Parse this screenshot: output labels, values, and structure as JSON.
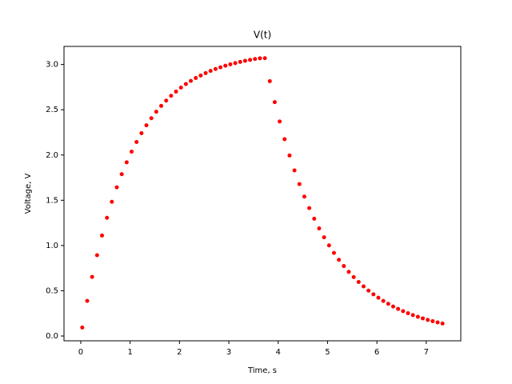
{
  "chart_data": {
    "type": "scatter",
    "title": "V(t)",
    "x_label": "Time, s",
    "y_label": "Voltage, V",
    "color": "#ff0000",
    "x": [
      0.03,
      0.13,
      0.23,
      0.33,
      0.43,
      0.53,
      0.63,
      0.73,
      0.83,
      0.93,
      1.03,
      1.13,
      1.23,
      1.33,
      1.43,
      1.53,
      1.63,
      1.73,
      1.83,
      1.93,
      2.03,
      2.13,
      2.23,
      2.33,
      2.43,
      2.53,
      2.63,
      2.73,
      2.83,
      2.93,
      3.03,
      3.13,
      3.23,
      3.33,
      3.43,
      3.53,
      3.63,
      3.73,
      3.83,
      3.93,
      4.03,
      4.13,
      4.23,
      4.33,
      4.43,
      4.53,
      4.63,
      4.73,
      4.83,
      4.93,
      5.03,
      5.13,
      5.23,
      5.33,
      5.43,
      5.53,
      5.63,
      5.73,
      5.83,
      5.93,
      6.03,
      6.13,
      6.23,
      6.33,
      6.43,
      6.53,
      6.63,
      6.73,
      6.83,
      6.93,
      7.03,
      7.13,
      7.23,
      7.33
    ],
    "values": [
      0.094,
      0.388,
      0.653,
      0.893,
      1.11,
      1.306,
      1.483,
      1.643,
      1.788,
      1.919,
      2.037,
      2.144,
      2.241,
      2.328,
      2.407,
      2.478,
      2.543,
      2.601,
      2.654,
      2.701,
      2.745,
      2.784,
      2.819,
      2.851,
      2.879,
      2.905,
      2.929,
      2.95,
      2.969,
      2.987,
      3.002,
      3.016,
      3.029,
      3.041,
      3.051,
      3.061,
      3.069,
      3.07,
      2.816,
      2.584,
      2.37,
      2.175,
      1.995,
      1.83,
      1.679,
      1.54,
      1.413,
      1.296,
      1.189,
      1.091,
      1.001,
      0.918,
      0.842,
      0.773,
      0.709,
      0.651,
      0.597,
      0.548,
      0.502,
      0.461,
      0.423,
      0.388,
      0.356,
      0.326,
      0.299,
      0.275,
      0.252,
      0.231,
      0.212,
      0.195,
      0.178,
      0.164,
      0.15,
      0.138
    ],
    "xlim": [
      -0.34,
      7.7
    ],
    "ylim": [
      -0.053,
      3.2
    ],
    "xticks": [
      0,
      1,
      2,
      3,
      4,
      5,
      6,
      7
    ],
    "yticks": [
      {
        "value": 0,
        "label": "0.0"
      },
      {
        "value": 0.5,
        "label": "0.5"
      },
      {
        "value": 1,
        "label": "1.0"
      },
      {
        "value": 1.5,
        "label": "1.5"
      },
      {
        "value": 2,
        "label": "2.0"
      },
      {
        "value": 2.5,
        "label": "2.5"
      },
      {
        "value": 3,
        "label": "3.0"
      }
    ],
    "grid": false
  }
}
